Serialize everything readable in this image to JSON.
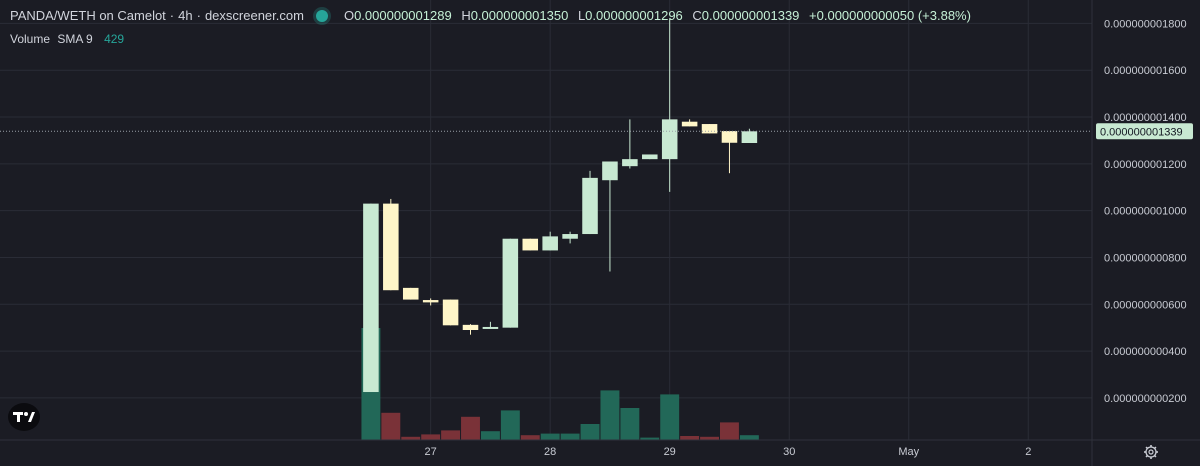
{
  "header": {
    "pair": "PANDA/WETH on Camelot",
    "interval": "4h",
    "source": "dexscreener.com",
    "ohlc": {
      "o_label": "O",
      "o": "0.000000001289",
      "h_label": "H",
      "h": "0.000000001350",
      "l_label": "L",
      "l": "0.000000001296",
      "c_label": "C",
      "c": "0.000000001339",
      "change": "+0.000000000050 (+3.88%)"
    }
  },
  "volume_legend": {
    "label": "Volume",
    "sma": "SMA 9",
    "value": "429"
  },
  "current_price_label": "0.000000001339",
  "colors": {
    "background": "#1b1c24",
    "grid": "#2a2c36",
    "up": "#c8e9d2",
    "down": "#fff6c8",
    "volume_up": "#226858",
    "volume_down": "#7a3238",
    "price_line": "#9aa0a8"
  },
  "icons": {
    "logo": "tradingview-logo-icon",
    "settings": "gear-icon"
  },
  "chart_data": {
    "type": "candlestick",
    "y_unit": "price in WETH",
    "ylim": [
      2e-11,
      1.9e-09
    ],
    "y_ticks": [
      {
        "value": 2e-10,
        "label": "0.000000000200"
      },
      {
        "value": 4e-10,
        "label": "0.000000000400"
      },
      {
        "value": 6e-10,
        "label": "0.000000000600"
      },
      {
        "value": 8e-10,
        "label": "0.000000000800"
      },
      {
        "value": 1e-09,
        "label": "0.000000001000"
      },
      {
        "value": 1.2e-09,
        "label": "0.000000001200"
      },
      {
        "value": 1.4e-09,
        "label": "0.000000001400"
      },
      {
        "value": 1.6e-09,
        "label": "0.000000001600"
      },
      {
        "value": 1.8e-09,
        "label": "0.000000001800"
      }
    ],
    "x_ticks": [
      {
        "t": 3.0,
        "label": "27"
      },
      {
        "t": 9.0,
        "label": "28"
      },
      {
        "t": 15.0,
        "label": "29"
      },
      {
        "t": 21.0,
        "label": "30"
      },
      {
        "t": 27.0,
        "label": "May"
      },
      {
        "t": 33.0,
        "label": "2"
      }
    ],
    "xlim": [
      -18.62,
      36.2
    ],
    "grid": true,
    "current_price": 1.339e-09,
    "candles": [
      {
        "t": 0,
        "o": 2.25e-10,
        "h": 1.03e-09,
        "l": 2.25e-10,
        "c": 1.03e-09,
        "v": 140
      },
      {
        "t": 1,
        "o": 1.03e-09,
        "h": 1.05e-09,
        "l": 6.6e-10,
        "c": 6.6e-10,
        "v": 34
      },
      {
        "t": 2,
        "o": 6.7e-10,
        "h": 6.7e-10,
        "l": 6.2e-10,
        "c": 6.2e-10,
        "v": 4
      },
      {
        "t": 3,
        "o": 6.18e-10,
        "h": 6.25e-10,
        "l": 5.95e-10,
        "c": 6.08e-10,
        "v": 7
      },
      {
        "t": 4,
        "o": 6.2e-10,
        "h": 6.2e-10,
        "l": 5.1e-10,
        "c": 5.1e-10,
        "v": 12
      },
      {
        "t": 5,
        "o": 5.12e-10,
        "h": 5.15e-10,
        "l": 4.7e-10,
        "c": 4.9e-10,
        "v": 29
      },
      {
        "t": 6,
        "o": 4.95e-10,
        "h": 5.25e-10,
        "l": 4.95e-10,
        "c": 5.03e-10,
        "v": 11
      },
      {
        "t": 7,
        "o": 5e-10,
        "h": 8.8e-10,
        "l": 5e-10,
        "c": 8.8e-10,
        "v": 37
      },
      {
        "t": 8,
        "o": 8.8e-10,
        "h": 8.8e-10,
        "l": 8.3e-10,
        "c": 8.3e-10,
        "v": 6
      },
      {
        "t": 9,
        "o": 8.3e-10,
        "h": 9.1e-10,
        "l": 8.3e-10,
        "c": 8.9e-10,
        "v": 8
      },
      {
        "t": 10,
        "o": 8.8e-10,
        "h": 9.1e-10,
        "l": 8.6e-10,
        "c": 9e-10,
        "v": 8
      },
      {
        "t": 11,
        "o": 9e-10,
        "h": 1.17e-09,
        "l": 9e-10,
        "c": 1.14e-09,
        "v": 20
      },
      {
        "t": 12,
        "o": 1.13e-09,
        "h": 1.21e-09,
        "l": 7.4e-10,
        "c": 1.21e-09,
        "v": 62
      },
      {
        "t": 13,
        "o": 1.19e-09,
        "h": 1.39e-09,
        "l": 1.18e-09,
        "c": 1.22e-09,
        "v": 40
      },
      {
        "t": 14,
        "o": 1.22e-09,
        "h": 1.24e-09,
        "l": 1.22e-09,
        "c": 1.24e-09,
        "v": 3
      },
      {
        "t": 15,
        "o": 1.22e-09,
        "h": 1.82e-09,
        "l": 1.08e-09,
        "c": 1.39e-09,
        "v": 57
      },
      {
        "t": 16,
        "o": 1.38e-09,
        "h": 1.39e-09,
        "l": 1.36e-09,
        "c": 1.36e-09,
        "v": 5
      },
      {
        "t": 17,
        "o": 1.37e-09,
        "h": 1.37e-09,
        "l": 1.33e-09,
        "c": 1.33e-09,
        "v": 4
      },
      {
        "t": 18,
        "o": 1.34e-09,
        "h": 1.34e-09,
        "l": 1.16e-09,
        "c": 1.29e-09,
        "v": 22
      },
      {
        "t": 19,
        "o": 1.289e-09,
        "h": 1.35e-09,
        "l": 1.296e-09,
        "c": 1.339e-09,
        "v": 6
      }
    ]
  }
}
